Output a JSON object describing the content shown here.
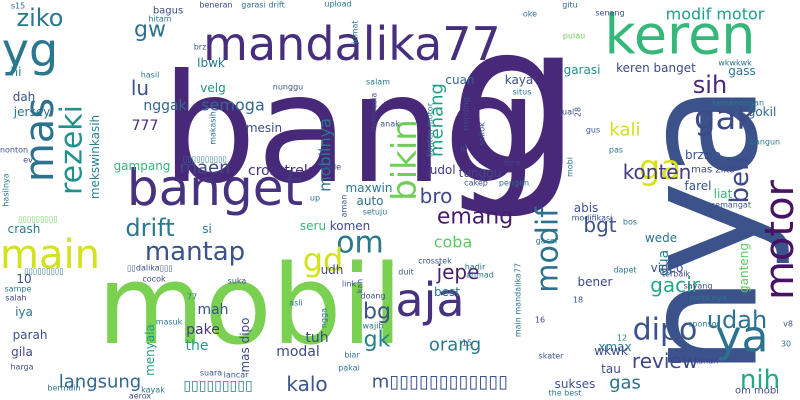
{
  "words": [
    {
      "text": "bang",
      "color": "#482878"
    },
    {
      "text": "nya",
      "color": "#3b528b"
    },
    {
      "text": "mobil",
      "color": "#7ad151"
    },
    {
      "text": "g",
      "color": "#482878"
    },
    {
      "text": "banget",
      "color": "#46327e"
    },
    {
      "text": "mandalika77",
      "color": "#472f7d"
    },
    {
      "text": "keren",
      "color": "#35b779"
    },
    {
      "text": "yg",
      "color": "#2a788e"
    },
    {
      "text": "mas",
      "color": "#2c728e"
    },
    {
      "text": "ziko",
      "color": "#2a788e"
    },
    {
      "text": "rezeki",
      "color": "#21918c"
    },
    {
      "text": "main",
      "color": "#d2e21b"
    },
    {
      "text": "motor",
      "color": "#471365"
    },
    {
      "text": "ya",
      "color": "#2c728e"
    },
    {
      "text": "aja",
      "color": "#46327e"
    },
    {
      "text": "bikin",
      "color": "#6ece58"
    },
    {
      "text": "modif",
      "color": "#2c728e"
    },
    {
      "text": "modif motor",
      "color": "#1f9e89"
    },
    {
      "text": "gak",
      "color": "#3e4989"
    },
    {
      "text": "ga",
      "color": "#d8e219"
    },
    {
      "text": "sih",
      "color": "#482878"
    },
    {
      "text": "beli",
      "color": "#3e4989"
    },
    {
      "text": "om",
      "color": "#2a788e"
    },
    {
      "text": "mantap",
      "color": "#3b528b"
    },
    {
      "text": "drift",
      "color": "#2a788e"
    },
    {
      "text": "emang",
      "color": "#481a6c"
    },
    {
      "text": "gd",
      "color": "#d2e21b"
    },
    {
      "text": "dipo",
      "color": "#3b528b"
    },
    {
      "text": "udah",
      "color": "#2c728e"
    },
    {
      "text": "nih",
      "color": "#22a884"
    },
    {
      "text": "konten",
      "color": "#443983"
    },
    {
      "text": "bgt",
      "color": "#3b528b"
    },
    {
      "text": "jepe",
      "color": "#481f70"
    },
    {
      "text": "orang",
      "color": "#2a788e"
    },
    {
      "text": "gacir",
      "color": "#22a884"
    },
    {
      "text": "review",
      "color": "#3e4989"
    },
    {
      "text": "gas",
      "color": "#2c728e"
    },
    {
      "text": "kalo",
      "color": "#3b528b"
    },
    {
      "text": "langsung",
      "color": "#31688e"
    },
    {
      "text": "bg",
      "color": "#3b528b"
    },
    {
      "text": "gk",
      "color": "#26828e"
    },
    {
      "text": "kali",
      "color": "#d2e21b"
    },
    {
      "text": "gw",
      "color": "#2c728e"
    },
    {
      "text": "lu",
      "color": "#3b528b"
    },
    {
      "text": "semoga",
      "color": "#31688e"
    },
    {
      "text": "maen",
      "color": "#3e4989"
    },
    {
      "text": "menang",
      "color": "#1f9e89"
    },
    {
      "text": "mobilnya",
      "color": "#2a788e"
    },
    {
      "text": "crosstrek",
      "color": "#46327e"
    },
    {
      "text": "bro",
      "color": "#3e4989"
    },
    {
      "text": "coba",
      "color": "#5ec962"
    },
    {
      "text": "gua",
      "color": "#2a788e"
    },
    {
      "text": "mah",
      "color": "#3b528b"
    },
    {
      "text": "the",
      "color": "#1f9e89"
    },
    {
      "text": "pake",
      "color": "#443983"
    },
    {
      "text": "modal",
      "color": "#3e4989"
    },
    {
      "text": "tuh",
      "color": "#3e4989"
    },
    {
      "text": "m▯▯▯▯▯▯▯▯▯▯▯▯",
      "color": "#3b528b"
    },
    {
      "text": "▯▯▯▯▯▯▯▯▯",
      "color": "#26828e"
    },
    {
      "text": "777",
      "color": "#482878"
    },
    {
      "text": "nggak",
      "color": "#31688e"
    },
    {
      "text": "velg",
      "color": "#21918c"
    },
    {
      "text": "mesin",
      "color": "#3e4989"
    },
    {
      "text": "jersey",
      "color": "#2c728e"
    },
    {
      "text": "dah",
      "color": "#3b528b"
    },
    {
      "text": "mekswinkasih",
      "color": "#26828e"
    },
    {
      "text": "gampang",
      "color": "#35b779"
    },
    {
      "text": "crash",
      "color": "#2a788e"
    },
    {
      "text": "bagus",
      "color": "#3e4989"
    },
    {
      "text": "hi",
      "color": "#26828e"
    },
    {
      "text": "lbwk",
      "color": "#2a788e"
    },
    {
      "text": "cuan",
      "color": "#31688e"
    },
    {
      "text": "kaya",
      "color": "#3b528b"
    },
    {
      "text": "garasi",
      "color": "#21918c"
    },
    {
      "text": "keren banget",
      "color": "#3e4989"
    },
    {
      "text": "gass",
      "color": "#2a788e"
    },
    {
      "text": "gokil",
      "color": "#31688e"
    },
    {
      "text": "brziko",
      "color": "#3b528b"
    },
    {
      "text": "farel",
      "color": "#3b528b"
    },
    {
      "text": "liat",
      "color": "#35b779"
    },
    {
      "text": "tunggu",
      "color": "#3e4989"
    },
    {
      "text": "judol",
      "color": "#443983"
    },
    {
      "text": "maxwin",
      "color": "#2a788e"
    },
    {
      "text": "auto",
      "color": "#2c728e"
    },
    {
      "text": "komen",
      "color": "#3e4989"
    },
    {
      "text": "seru",
      "color": "#35b779"
    },
    {
      "text": "abis",
      "color": "#3b528b"
    },
    {
      "text": "wede",
      "color": "#2c728e"
    },
    {
      "text": "video",
      "color": "#3b528b"
    },
    {
      "text": "bener",
      "color": "#3e4989"
    },
    {
      "text": "best",
      "color": "#2a788e"
    },
    {
      "text": "udh",
      "color": "#3e4989"
    },
    {
      "text": "iya",
      "color": "#2c728e"
    },
    {
      "text": "parah",
      "color": "#3b528b"
    },
    {
      "text": "gila",
      "color": "#3e4989"
    },
    {
      "text": "10",
      "color": "#3b528b"
    },
    {
      "text": "si",
      "color": "#2a788e"
    },
    {
      "text": "mas dipo",
      "color": "#3e4989"
    },
    {
      "text": "menyala",
      "color": "#1f9e89"
    },
    {
      "text": "xmax",
      "color": "#2a788e"
    },
    {
      "text": "wkwk",
      "color": "#3e4989"
    },
    {
      "text": "tau",
      "color": "#3e4989"
    },
    {
      "text": "sukses",
      "color": "#3b528b"
    },
    {
      "text": "ganteng",
      "color": "#5ec962"
    },
    {
      "text": "om mobi",
      "color": "#3e4989"
    },
    {
      "text": "mas ziko",
      "color": "#3e4989"
    },
    {
      "text": "upload",
      "color": "#2a788e"
    },
    {
      "text": "hitam",
      "color": "#2a788e"
    },
    {
      "text": "beneran",
      "color": "#3e4989"
    },
    {
      "text": "garasi drift",
      "color": "#2c728e"
    },
    {
      "text": "senang",
      "color": "#3b528b"
    },
    {
      "text": "oke",
      "color": "#2a788e"
    },
    {
      "text": "gitu",
      "color": "#2c728e"
    },
    {
      "text": "pulau",
      "color": "#6ece58"
    },
    {
      "text": "wkwkwk",
      "color": "#2c728e"
    },
    {
      "text": "kemenangan",
      "color": "#2a788e"
    },
    {
      "text": "jual",
      "color": "#3e4989"
    },
    {
      "text": "gus",
      "color": "#3b528b"
    },
    {
      "text": "pas",
      "color": "#2c728e"
    },
    {
      "text": "bangun",
      "color": "#2a788e"
    },
    {
      "text": "semangat",
      "color": "#3b528b"
    },
    {
      "text": "modifikasi",
      "color": "#3b528b"
    },
    {
      "text": "bos",
      "color": "#2c728e"
    },
    {
      "text": "gacor",
      "color": "#2a788e"
    },
    {
      "text": "dapet",
      "color": "#2a788e"
    },
    {
      "text": "terbaik",
      "color": "#3e4989"
    },
    {
      "text": "sayang",
      "color": "#3e4989"
    },
    {
      "text": "sponsor",
      "color": "#2a788e"
    },
    {
      "text": "kanan",
      "color": "#3e4989"
    },
    {
      "text": "mobi nya",
      "color": "#2c728e"
    },
    {
      "text": "hadir",
      "color": "#2c728e"
    },
    {
      "text": "ahmad",
      "color": "#2a788e"
    },
    {
      "text": "duit",
      "color": "#3b528b"
    },
    {
      "text": "doang",
      "color": "#3e4989"
    },
    {
      "text": "link",
      "color": "#3b528b"
    },
    {
      "text": "asli",
      "color": "#2a788e"
    },
    {
      "text": "biar",
      "color": "#2c728e"
    },
    {
      "text": "pakai",
      "color": "#2a788e"
    },
    {
      "text": "lancar",
      "color": "#3b528b"
    },
    {
      "text": "aerox",
      "color": "#3e4989"
    },
    {
      "text": "bermain",
      "color": "#2c728e"
    },
    {
      "text": "kayak",
      "color": "#2a788e"
    },
    {
      "text": "harga",
      "color": "#3b528b"
    },
    {
      "text": "salah",
      "color": "#3e4989"
    },
    {
      "text": "sampe",
      "color": "#2a788e"
    },
    {
      "text": "cocok",
      "color": "#3e4989"
    },
    {
      "text": "masuk",
      "color": "#2a788e"
    },
    {
      "text": "suka",
      "color": "#3b528b"
    },
    {
      "text": "wajib",
      "color": "#2c728e"
    },
    {
      "text": "the best",
      "color": "#2a788e"
    },
    {
      "text": "skater",
      "color": "#3b528b"
    },
    {
      "text": "main mandalika77",
      "color": "#2c728e"
    },
    {
      "text": "nonton",
      "color": "#3b528b"
    },
    {
      "text": "hasilnya",
      "color": "#2a788e"
    },
    {
      "text": "makasih",
      "color": "#2c728e"
    },
    {
      "text": "nunggu",
      "color": "#3b528b"
    },
    {
      "text": "salam",
      "color": "#2a788e"
    },
    {
      "text": "indonesia",
      "color": "#3e4989"
    },
    {
      "text": "anak",
      "color": "#3b528b"
    },
    {
      "text": "situs",
      "color": "#2c728e"
    },
    {
      "text": "trending",
      "color": "#3e4989"
    },
    {
      "text": "saifok",
      "color": "#3b528b"
    },
    {
      "text": "konten motor",
      "color": "#2a788e"
    },
    {
      "text": "jp",
      "color": "#3e4989"
    },
    {
      "text": "cakep",
      "color": "#3b528b"
    },
    {
      "text": "pengen",
      "color": "#2c728e"
    },
    {
      "text": "fitra",
      "color": "#3e4989"
    },
    {
      "text": "setuju",
      "color": "#2c728e"
    },
    {
      "text": "aman",
      "color": "#3b528b"
    },
    {
      "text": "up",
      "color": "#2c728e"
    },
    {
      "text": "gede",
      "color": "#3e4989"
    },
    {
      "text": "jumat",
      "color": "#2a788e"
    },
    {
      "text": "brz",
      "color": "#3b528b"
    },
    {
      "text": "s15",
      "color": "#2c728e"
    },
    {
      "text": "▯▯▯▯▯▯▯▯▯",
      "color": "#6ece58"
    },
    {
      "text": "▯▯▯▯▯▯▯▯▯",
      "color": "#2c728e"
    },
    {
      "text": "▯▯dalika▯▯▯",
      "color": "#3b528b"
    },
    {
      "text": "▯▯▯▯▯▯▯▯▯▯",
      "color": "#2a788e"
    },
    {
      "text": "v8",
      "color": "#3b528b"
    },
    {
      "text": "30",
      "color": "#2c728e"
    },
    {
      "text": "16",
      "color": "#3e4989"
    },
    {
      "text": "18",
      "color": "#3b528b"
    },
    {
      "text": "12",
      "color": "#2a788e"
    },
    {
      "text": "15",
      "color": "#3e4989"
    },
    {
      "text": "77",
      "color": "#2c728e"
    },
    {
      "text": "28",
      "color": "#3b528b"
    },
    {
      "text": "crosstek",
      "color": "#3b528b"
    },
    {
      "text": "ngga",
      "color": "#2c728e"
    },
    {
      "text": "kah",
      "color": "#3b528b"
    },
    {
      "text": "ev",
      "color": "#3e4989"
    },
    {
      "text": "hasil",
      "color": "#2c728e"
    },
    {
      "text": "mobi",
      "color": "#2c728e"
    },
    {
      "text": "suara",
      "color": "#3b528b"
    }
  ]
}
